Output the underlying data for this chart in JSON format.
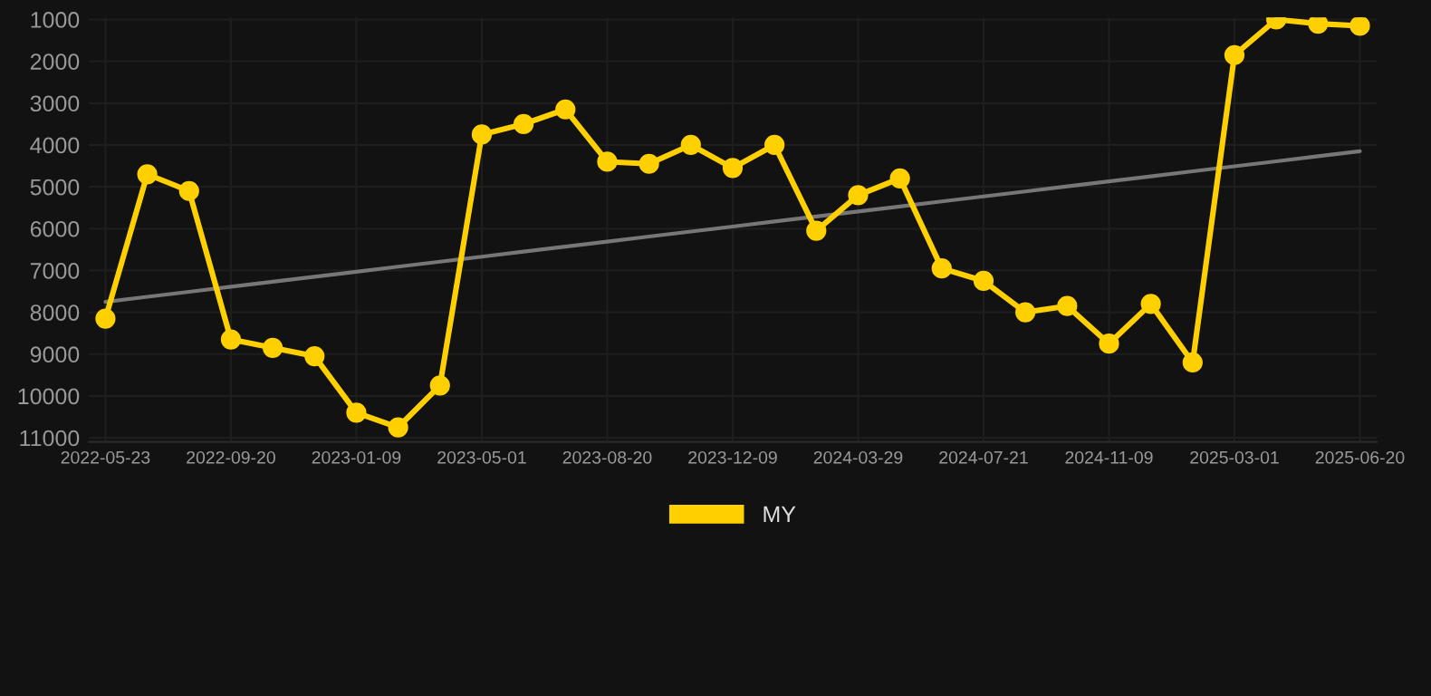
{
  "chart_data": {
    "type": "line",
    "categories": [
      "2022-05-23",
      null,
      null,
      "2022-09-20",
      null,
      null,
      "2023-01-09",
      null,
      null,
      "2023-05-01",
      null,
      null,
      "2023-08-20",
      null,
      null,
      "2023-12-09",
      null,
      null,
      "2024-03-29",
      null,
      null,
      "2024-07-21",
      null,
      null,
      "2024-11-09",
      null,
      null,
      "2025-03-01",
      null,
      null,
      "2025-06-20"
    ],
    "series": [
      {
        "name": "MY",
        "color": "#ffd000",
        "values": [
          8150,
          4700,
          5100,
          8650,
          8850,
          9050,
          10400,
          10750,
          9750,
          3750,
          3500,
          3150,
          4400,
          4450,
          4000,
          4550,
          4000,
          6050,
          5200,
          4800,
          6950,
          7250,
          8000,
          7850,
          8750,
          7800,
          9200,
          1850,
          1000,
          1100,
          1150
        ],
        "marker": "circle"
      },
      {
        "type": "line",
        "color": "#777777",
        "values": [
          7750,
          7630,
          7510,
          7390,
          7270,
          7150,
          7030,
          6910,
          6790,
          6670,
          6550,
          6430,
          6310,
          6190,
          6070,
          5950,
          5830,
          5710,
          5590,
          5470,
          5350,
          5230,
          5110,
          4990,
          4870,
          4750,
          4630,
          4510,
          4390,
          4270,
          4150
        ],
        "marker": "none"
      }
    ],
    "ylim": [
      11100,
      950
    ],
    "yticks": [
      1000,
      2000,
      3000,
      4000,
      5000,
      6000,
      7000,
      8000,
      9000,
      10000,
      11000
    ],
    "grid": true,
    "legend": "bottom",
    "line_style": "solid"
  }
}
